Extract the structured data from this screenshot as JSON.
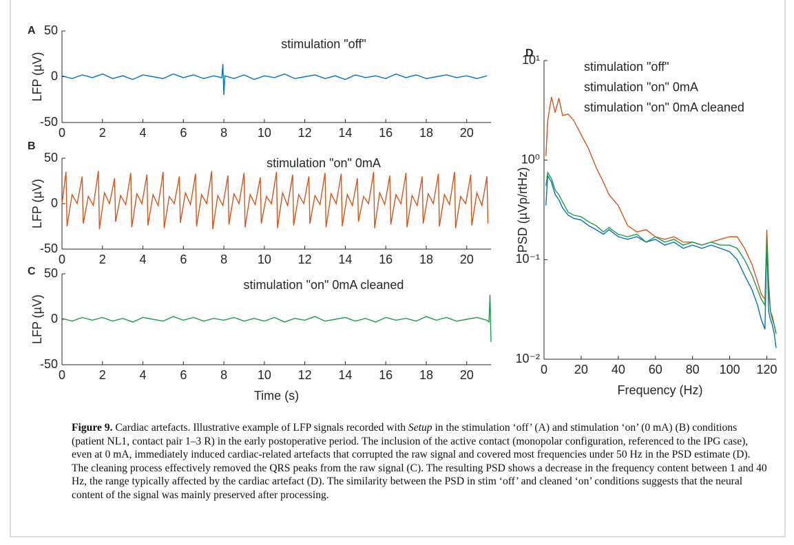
{
  "chart_data": [
    {
      "type": "line",
      "panel_label": "A",
      "title": "stimulation \"off\"",
      "ylabel": "LFP (µV)",
      "x": [
        0,
        0.5,
        1,
        1.5,
        2,
        2.5,
        3,
        3.5,
        4,
        4.5,
        5,
        5.5,
        6,
        6.5,
        7,
        7.5,
        7.9,
        7.95,
        8,
        8.05,
        8.5,
        9,
        9.5,
        10,
        10.5,
        11,
        11.5,
        12,
        12.5,
        13,
        13.5,
        14,
        14.5,
        15,
        15.5,
        16,
        16.5,
        17,
        17.5,
        18,
        18.5,
        19,
        19.5,
        20,
        20.5,
        21
      ],
      "series": [
        {
          "color": "#0072BD",
          "values": [
            1,
            -2,
            2,
            -1,
            3,
            -2,
            1,
            -3,
            2,
            0,
            -2,
            3,
            -1,
            2,
            -2,
            1,
            -1,
            14,
            -20,
            1,
            -2,
            2,
            -3,
            1,
            -1,
            3,
            -2,
            0,
            2,
            -2,
            1,
            -3,
            2,
            -1,
            1,
            -2,
            3,
            -1,
            2,
            -2,
            0,
            2,
            -1,
            1,
            -2,
            1
          ]
        }
      ],
      "xlim": [
        0,
        21.2
      ],
      "xticks": [
        0,
        2,
        4,
        6,
        8,
        10,
        12,
        14,
        16,
        18,
        20
      ],
      "ylim": [
        -50,
        50
      ],
      "yticks": [
        -50,
        0,
        50
      ]
    },
    {
      "type": "line",
      "panel_label": "B",
      "title": "stimulation \"on\" 0mA",
      "ylabel": "LFP (µV)",
      "x": [
        0,
        0.2,
        0.25,
        0.5,
        0.75,
        1.0,
        1.05,
        1.3,
        1.55,
        1.8,
        1.85,
        2.1,
        2.35,
        2.6,
        2.65,
        2.9,
        3.15,
        3.4,
        3.45,
        3.7,
        3.95,
        4.2,
        4.25,
        4.5,
        4.75,
        5.0,
        5.05,
        5.3,
        5.55,
        5.8,
        5.85,
        6.1,
        6.35,
        6.6,
        6.65,
        6.9,
        7.15,
        7.4,
        7.45,
        7.7,
        7.95,
        8.2,
        8.25,
        8.5,
        8.75,
        9.0,
        9.05,
        9.3,
        9.55,
        9.8,
        9.85,
        10.1,
        10.35,
        10.6,
        10.65,
        10.9,
        11.15,
        11.4,
        11.45,
        11.7,
        11.95,
        12.2,
        12.25,
        12.5,
        12.75,
        13.0,
        13.05,
        13.3,
        13.55,
        13.8,
        13.85,
        14.1,
        14.35,
        14.6,
        14.65,
        14.9,
        15.15,
        15.4,
        15.45,
        15.7,
        15.95,
        16.2,
        16.25,
        16.5,
        16.75,
        17.0,
        17.05,
        17.3,
        17.55,
        17.8,
        17.85,
        18.1,
        18.35,
        18.6,
        18.65,
        18.9,
        19.15,
        19.4,
        19.45,
        19.7,
        19.95,
        20.2,
        20.25,
        20.5,
        20.75,
        21.0,
        21.05
      ],
      "series": [
        {
          "color": "#D95319",
          "values": [
            0,
            35,
            -25,
            10,
            0,
            30,
            -22,
            8,
            -2,
            36,
            -28,
            12,
            0,
            28,
            -20,
            9,
            -1,
            34,
            -26,
            11,
            0,
            32,
            -24,
            10,
            -2,
            35,
            -27,
            8,
            0,
            30,
            -21,
            12,
            -1,
            33,
            -25,
            10,
            0,
            36,
            -28,
            9,
            -2,
            31,
            -23,
            11,
            0,
            34,
            -26,
            10,
            -1,
            29,
            -22,
            8,
            0,
            35,
            -27,
            12,
            -2,
            32,
            -24,
            10,
            0,
            30,
            -22,
            9,
            -1,
            34,
            -26,
            11,
            0,
            33,
            -25,
            10,
            -2,
            28,
            -20,
            8,
            0,
            35,
            -27,
            12,
            -1,
            31,
            -23,
            10,
            0,
            34,
            -26,
            9,
            -2,
            30,
            -22,
            11,
            0,
            33,
            -25,
            10,
            -1,
            35,
            -27,
            8,
            0,
            32,
            -24,
            12,
            -2,
            30,
            -22
          ]
        }
      ],
      "xlim": [
        0,
        21.2
      ],
      "xticks": [
        0,
        2,
        4,
        6,
        8,
        10,
        12,
        14,
        16,
        18,
        20
      ],
      "ylim": [
        -50,
        50
      ],
      "yticks": [
        -50,
        0,
        50
      ]
    },
    {
      "type": "line",
      "panel_label": "C",
      "title": "stimulation \"on\" 0mA cleaned",
      "ylabel": "LFP (µV)",
      "xlabel": "Time (s)",
      "x": [
        0,
        0.5,
        1,
        1.5,
        2,
        2.5,
        3,
        3.5,
        4,
        4.5,
        5,
        5.5,
        6,
        6.5,
        7,
        7.5,
        8,
        8.5,
        9,
        9.5,
        10,
        10.5,
        11,
        11.5,
        12,
        12.5,
        13,
        13.5,
        14,
        14.5,
        15,
        15.5,
        16,
        16.5,
        17,
        17.5,
        18,
        18.5,
        19,
        19.5,
        20,
        20.5,
        21,
        21.1,
        21.15,
        21.2
      ],
      "series": [
        {
          "color": "#20984A",
          "values": [
            1,
            -2,
            2,
            -1,
            2,
            -2,
            1,
            -3,
            2,
            0,
            -2,
            3,
            -1,
            2,
            -2,
            1,
            -1,
            2,
            -2,
            1,
            -2,
            2,
            -3,
            1,
            -1,
            3,
            -2,
            0,
            2,
            -2,
            1,
            -3,
            2,
            -1,
            1,
            -2,
            3,
            -1,
            2,
            -2,
            0,
            2,
            -1,
            -3,
            27,
            -25
          ]
        }
      ],
      "xlim": [
        0,
        21.2
      ],
      "xticks": [
        0,
        2,
        4,
        6,
        8,
        10,
        12,
        14,
        16,
        18,
        20
      ],
      "ylim": [
        -50,
        50
      ],
      "yticks": [
        -50,
        0,
        50
      ]
    },
    {
      "type": "line",
      "panel_label": "D",
      "ylabel": "PSD (µVp/rtHz)",
      "xlabel": "Frequency (Hz)",
      "log_y": true,
      "x": [
        1,
        2,
        4,
        6,
        8,
        10,
        13,
        16,
        20,
        24,
        28,
        32,
        35,
        40,
        45,
        50,
        55,
        60,
        65,
        70,
        75,
        80,
        85,
        90,
        95,
        100,
        104,
        108,
        112,
        115,
        117,
        119,
        120,
        121,
        122,
        123,
        124,
        125
      ],
      "series": [
        {
          "name": "stimulation \"off\"",
          "color": "#0072BD",
          "values": [
            0.35,
            0.7,
            0.6,
            0.45,
            0.4,
            0.33,
            0.28,
            0.26,
            0.25,
            0.22,
            0.2,
            0.18,
            0.2,
            0.17,
            0.16,
            0.17,
            0.15,
            0.16,
            0.14,
            0.15,
            0.13,
            0.14,
            0.13,
            0.14,
            0.13,
            0.12,
            0.1,
            0.07,
            0.05,
            0.035,
            0.025,
            0.02,
            0.15,
            0.03,
            0.025,
            0.022,
            0.018,
            0.013
          ]
        },
        {
          "name": "stimulation \"on\" 0mA",
          "color": "#D95319",
          "values": [
            1.1,
            2.5,
            4.3,
            3.0,
            4.2,
            2.8,
            2.9,
            2.5,
            1.8,
            1.3,
            0.85,
            0.6,
            0.45,
            0.35,
            0.22,
            0.19,
            0.2,
            0.17,
            0.16,
            0.17,
            0.15,
            0.15,
            0.14,
            0.15,
            0.16,
            0.17,
            0.17,
            0.13,
            0.09,
            0.06,
            0.045,
            0.04,
            0.2,
            0.06,
            0.03,
            0.027,
            0.022,
            0.018
          ]
        },
        {
          "name": "stimulation \"on\" 0mA cleaned",
          "color": "#20984A",
          "values": [
            0.55,
            0.75,
            0.65,
            0.5,
            0.45,
            0.38,
            0.3,
            0.28,
            0.27,
            0.24,
            0.22,
            0.19,
            0.21,
            0.18,
            0.17,
            0.18,
            0.15,
            0.17,
            0.15,
            0.16,
            0.14,
            0.15,
            0.14,
            0.15,
            0.14,
            0.14,
            0.13,
            0.1,
            0.07,
            0.05,
            0.04,
            0.035,
            0.17,
            0.05,
            0.03,
            0.025,
            0.022,
            0.018
          ]
        }
      ],
      "xlim": [
        0,
        125
      ],
      "xticks": [
        0,
        20,
        40,
        60,
        80,
        100,
        120
      ],
      "ylim": [
        0.01,
        10
      ],
      "yticks": [
        {
          "value": 0.01,
          "label": "10⁻²"
        },
        {
          "value": 0.1,
          "label": "10⁻¹"
        },
        {
          "value": 1,
          "label": "10⁰"
        },
        {
          "value": 10,
          "label": "10¹"
        }
      ]
    }
  ],
  "caption": {
    "label": "Figure 9.",
    "text_before": " Cardiac artefacts. Illustrative example of LFP signals recorded with ",
    "italic": "Setup",
    "text_after": " in the stimulation ‘off’ (A) and stimulation ‘on’ (0 mA) (B) conditions (patient NL1, contact pair 1–3 R) in the early postoperative period. The inclusion of the active contact (monopolar configuration, referenced to the IPG case), even at 0 mA, immediately induced cardiac-related artefacts that corrupted the raw signal and covered most frequencies under 50 Hz in the PSD estimate (D). The cleaning process effectively removed the QRS peaks from the raw signal (C). The resulting PSD shows a decrease in the frequency content between 1 and 40 Hz, the range typically affected by the cardiac artefact (D). The similarity between the PSD in stim ‘off’ and cleaned ‘on’ conditions suggests that the neural content of the signal was mainly preserved after processing."
  }
}
